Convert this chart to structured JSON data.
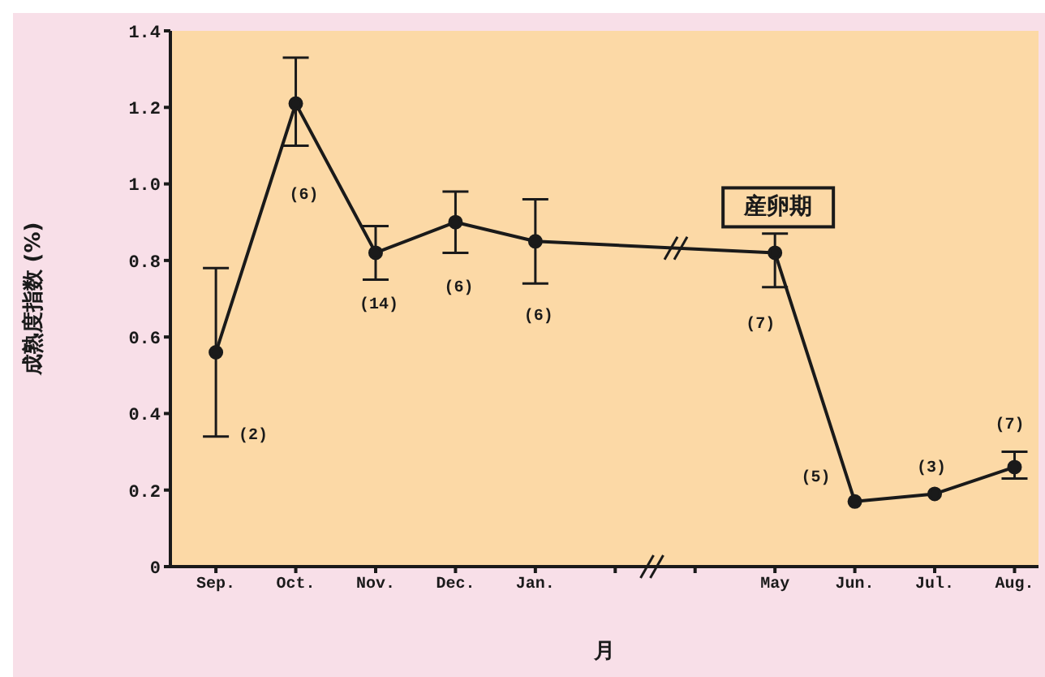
{
  "chart_data": {
    "type": "line",
    "xlabel": "月",
    "ylabel": "成熟度指数 (%)",
    "categories": [
      "Sep.",
      "Oct.",
      "Nov.",
      "Dec.",
      "Jan.",
      null,
      null,
      "May",
      "Jun.",
      "Jul.",
      "Aug."
    ],
    "values": [
      0.56,
      1.21,
      0.82,
      0.9,
      0.85,
      null,
      null,
      0.82,
      0.17,
      0.19,
      0.26
    ],
    "errors": [
      [
        0.34,
        0.78
      ],
      [
        1.1,
        1.33
      ],
      [
        0.75,
        0.89
      ],
      [
        0.82,
        0.98
      ],
      [
        0.74,
        0.96
      ],
      null,
      null,
      [
        0.73,
        0.87
      ],
      null,
      null,
      [
        0.23,
        0.3
      ]
    ],
    "color": "#1a1a1a",
    "marker": "circle",
    "line_style": "solid",
    "grid": false,
    "legend": false,
    "ylim": [
      0,
      1.4
    ],
    "yticks": [
      0,
      0.2,
      0.4,
      0.6,
      0.8,
      {
        "value": 1,
        "label": "1.0"
      },
      1.2,
      1.4
    ],
    "annotations": [
      "(2)",
      "(6)",
      "(14)",
      "(6)",
      "(6)",
      "(7)",
      "(5)",
      "(3)",
      "(7)",
      {
        "text": "産卵期",
        "x": "May",
        "y": 0.82
      }
    ]
  }
}
